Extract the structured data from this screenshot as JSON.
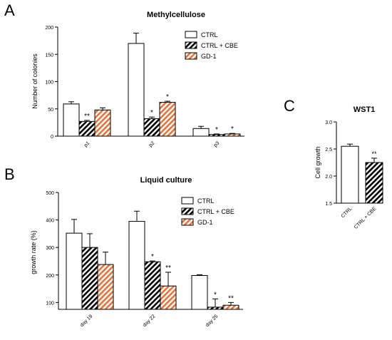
{
  "colors": {
    "ctrl_fill": "#ffffff",
    "cbe_stripe": "#000000",
    "gd1_stripe": "#e8733a",
    "axis": "#000000"
  },
  "patterns": {
    "ctrl": "none",
    "ctrl_cbe": "diagonal-black-hatch",
    "gd1": "diagonal-orange-hatch"
  },
  "chart_data": [
    {
      "panel": "A",
      "type": "bar",
      "title": "Methylcellulose",
      "xlabel": "",
      "ylabel": "Number of colonies",
      "ylim": [
        0,
        200
      ],
      "yticks": [
        "0",
        "50",
        "100",
        "150",
        "200"
      ],
      "categories": [
        "p1",
        "p2",
        "p3"
      ],
      "series": [
        {
          "name": "CTRL",
          "values": [
            59,
            170,
            14
          ],
          "errors": [
            4,
            19,
            4
          ],
          "sig": [
            "",
            "",
            ""
          ]
        },
        {
          "name": "CTRL + CBE",
          "values": [
            27,
            32,
            3
          ],
          "errors": [
            2,
            3,
            1
          ],
          "sig": [
            "**",
            "*",
            "*"
          ]
        },
        {
          "name": "GD-1",
          "values": [
            48,
            62,
            4
          ],
          "errors": [
            4,
            2,
            1
          ],
          "sig": [
            "",
            "*",
            "*"
          ]
        }
      ],
      "legend": "top-right",
      "grid": false
    },
    {
      "panel": "B",
      "type": "bar",
      "title": "Liquid culture",
      "xlabel": "",
      "ylabel": "growth rate (%)",
      "ylim": [
        75,
        500
      ],
      "yticks": [
        "100",
        "200",
        "300",
        "400",
        "500"
      ],
      "categories": [
        "day 19",
        "day 22",
        "day 25"
      ],
      "series": [
        {
          "name": "CTRL",
          "values": [
            352,
            395,
            198
          ],
          "errors": [
            50,
            37,
            3
          ],
          "sig": [
            "",
            "",
            ""
          ]
        },
        {
          "name": "CTRL + CBE",
          "values": [
            300,
            248,
            83
          ],
          "errors": [
            50,
            3,
            30
          ],
          "sig": [
            "",
            "*",
            "*"
          ]
        },
        {
          "name": "GD-1",
          "values": [
            238,
            160,
            90
          ],
          "errors": [
            45,
            50,
            10
          ],
          "sig": [
            "",
            "**",
            "**"
          ]
        }
      ],
      "legend": "top-right",
      "grid": false
    },
    {
      "panel": "C",
      "type": "bar",
      "title": "WST1",
      "xlabel": "",
      "ylabel": "Cell growth",
      "ylim": [
        1.5,
        3.0
      ],
      "yticks": [
        "1.5",
        "2.0",
        "2.5",
        "3.0"
      ],
      "categories": [
        "CTRL",
        "CTRL + CBE"
      ],
      "series": [
        {
          "name": "",
          "values": [
            2.55,
            2.25
          ],
          "errors": [
            0.04,
            0.08
          ],
          "sig": [
            "",
            "**"
          ]
        }
      ],
      "grid": false
    }
  ],
  "panel_letters": {
    "a": "A",
    "b": "B",
    "c": "C"
  }
}
